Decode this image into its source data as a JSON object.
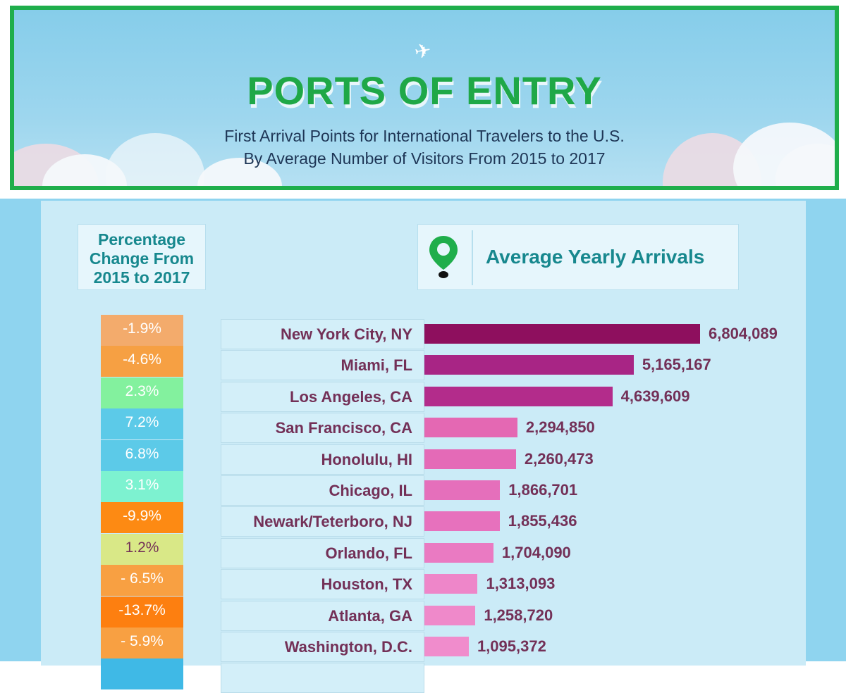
{
  "header": {
    "title": "PORTS OF ENTRY",
    "subtitle_line1": "First Arrival Points for International Travelers to the U.S.",
    "subtitle_line2": "By Average Number of Visitors From 2015 to 2017",
    "icon": "airplane-icon"
  },
  "legend": {
    "pct_header_line1": "Percentage",
    "pct_header_line2": "Change From",
    "pct_header_line3": "2015 to 2017",
    "arrivals_header": "Average Yearly Arrivals",
    "arrivals_icon": "map-pin-icon"
  },
  "colors": {
    "title_green": "#1fa847",
    "bar_dark": "#8e0f5e",
    "bar_light": "#f08ccc"
  },
  "chart_data": {
    "type": "bar",
    "orientation": "horizontal",
    "categories": [
      "New York City, NY",
      "Miami, FL",
      "Los Angeles, CA",
      "San Francisco, CA",
      "Honolulu, HI",
      "Chicago, IL",
      "Newark/Teterboro, NJ",
      "Orlando, FL",
      "Houston, TX",
      "Atlanta, GA",
      "Washington, D.C."
    ],
    "values": [
      6804089,
      5165167,
      4639609,
      2294850,
      2260473,
      1866701,
      1855436,
      1704090,
      1313093,
      1258720,
      1095372
    ],
    "value_labels": [
      "6,804,089",
      "5,165,167",
      "4,639,609",
      "2,294,850",
      "2,260,473",
      "1,866,701",
      "1,855,436",
      "1,704,090",
      "1,313,093",
      "1,258,720",
      "1,095,372"
    ],
    "pct_change_labels": [
      "-1.9%",
      "-4.6%",
      "2.3%",
      "7.2%",
      "6.8%",
      "3.1%",
      "-9.9%",
      "1.2%",
      "- 6.5%",
      "-13.7%",
      "- 5.9%"
    ],
    "pct_change": [
      -1.9,
      -4.6,
      2.3,
      7.2,
      6.8,
      3.1,
      -9.9,
      1.2,
      -6.5,
      -13.7,
      -5.9
    ],
    "pct_colors": [
      "#f3ab6c",
      "#f6a043",
      "#83f19e",
      "#5ccae8",
      "#5ccae8",
      "#7df2d0",
      "#fd8a13",
      "#d9e887",
      "#f8a042",
      "#fd7f10",
      "#f8a042"
    ],
    "bar_colors": [
      "#8e0f5e",
      "#a82585",
      "#b32c8b",
      "#e468b3",
      "#e46ab7",
      "#e56fbb",
      "#e771bd",
      "#ea7ac2",
      "#ee86c9",
      "#ef89ca",
      "#f08ccc"
    ],
    "xlabel": "",
    "ylabel": ""
  }
}
